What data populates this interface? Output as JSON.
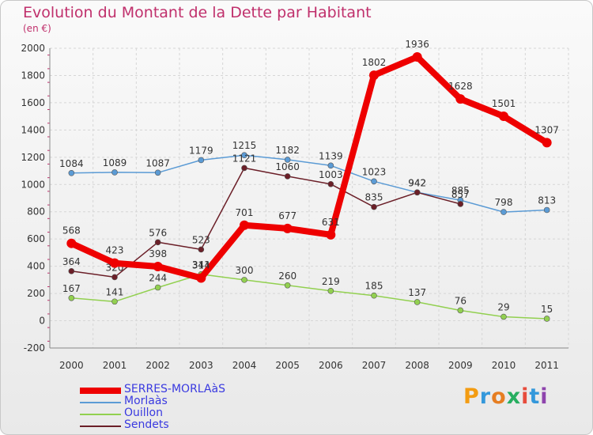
{
  "chart_data": {
    "type": "line",
    "title": "Evolution du Montant de la Dette par Habitant",
    "subtitle": "(en €)",
    "x": [
      "2000",
      "2001",
      "2002",
      "2003",
      "2004",
      "2005",
      "2006",
      "2007",
      "2008",
      "2009",
      "2010",
      "2011"
    ],
    "ylim": [
      -200,
      2000
    ],
    "yticks": [
      -200,
      0,
      200,
      400,
      600,
      800,
      1000,
      1200,
      1400,
      1600,
      1800,
      2000
    ],
    "grid": true,
    "legend_position": "bottom-left",
    "series": [
      {
        "name": "Morlaàs",
        "color": "#5b9bd5",
        "values": [
          1084,
          1089,
          1087,
          1179,
          1215,
          1182,
          1139,
          1023,
          942,
          885,
          798,
          813
        ]
      },
      {
        "name": "Ouillon",
        "color": "#92d050",
        "values": [
          167,
          141,
          244,
          341,
          300,
          260,
          219,
          185,
          137,
          76,
          29,
          15
        ]
      },
      {
        "name": "Sendets",
        "color": "#6b1f28",
        "values": [
          364,
          320,
          576,
          523,
          1121,
          1060,
          1003,
          835,
          942,
          857,
          null,
          null
        ]
      },
      {
        "name": "SERRES-MORLAàS",
        "color": "#ee0000",
        "values": [
          568,
          423,
          398,
          314,
          701,
          677,
          631,
          1802,
          1936,
          1628,
          1501,
          1307
        ]
      }
    ]
  },
  "legend": [
    {
      "label": "SERRES-MORLAàS",
      "color": "#ee0000"
    },
    {
      "label": "Morlaàs",
      "color": "#5b9bd5"
    },
    {
      "label": "Ouillon",
      "color": "#92d050"
    },
    {
      "label": "Sendets",
      "color": "#6b1f28"
    }
  ],
  "brand": {
    "text": "Proxiti",
    "letters": [
      "P",
      "r",
      "o",
      "x",
      "i",
      "t",
      "i"
    ],
    "colors": [
      "#f39c12",
      "#3498db",
      "#e67e22",
      "#27ae60",
      "#e74c3c",
      "#3498db",
      "#8e44ad"
    ]
  }
}
